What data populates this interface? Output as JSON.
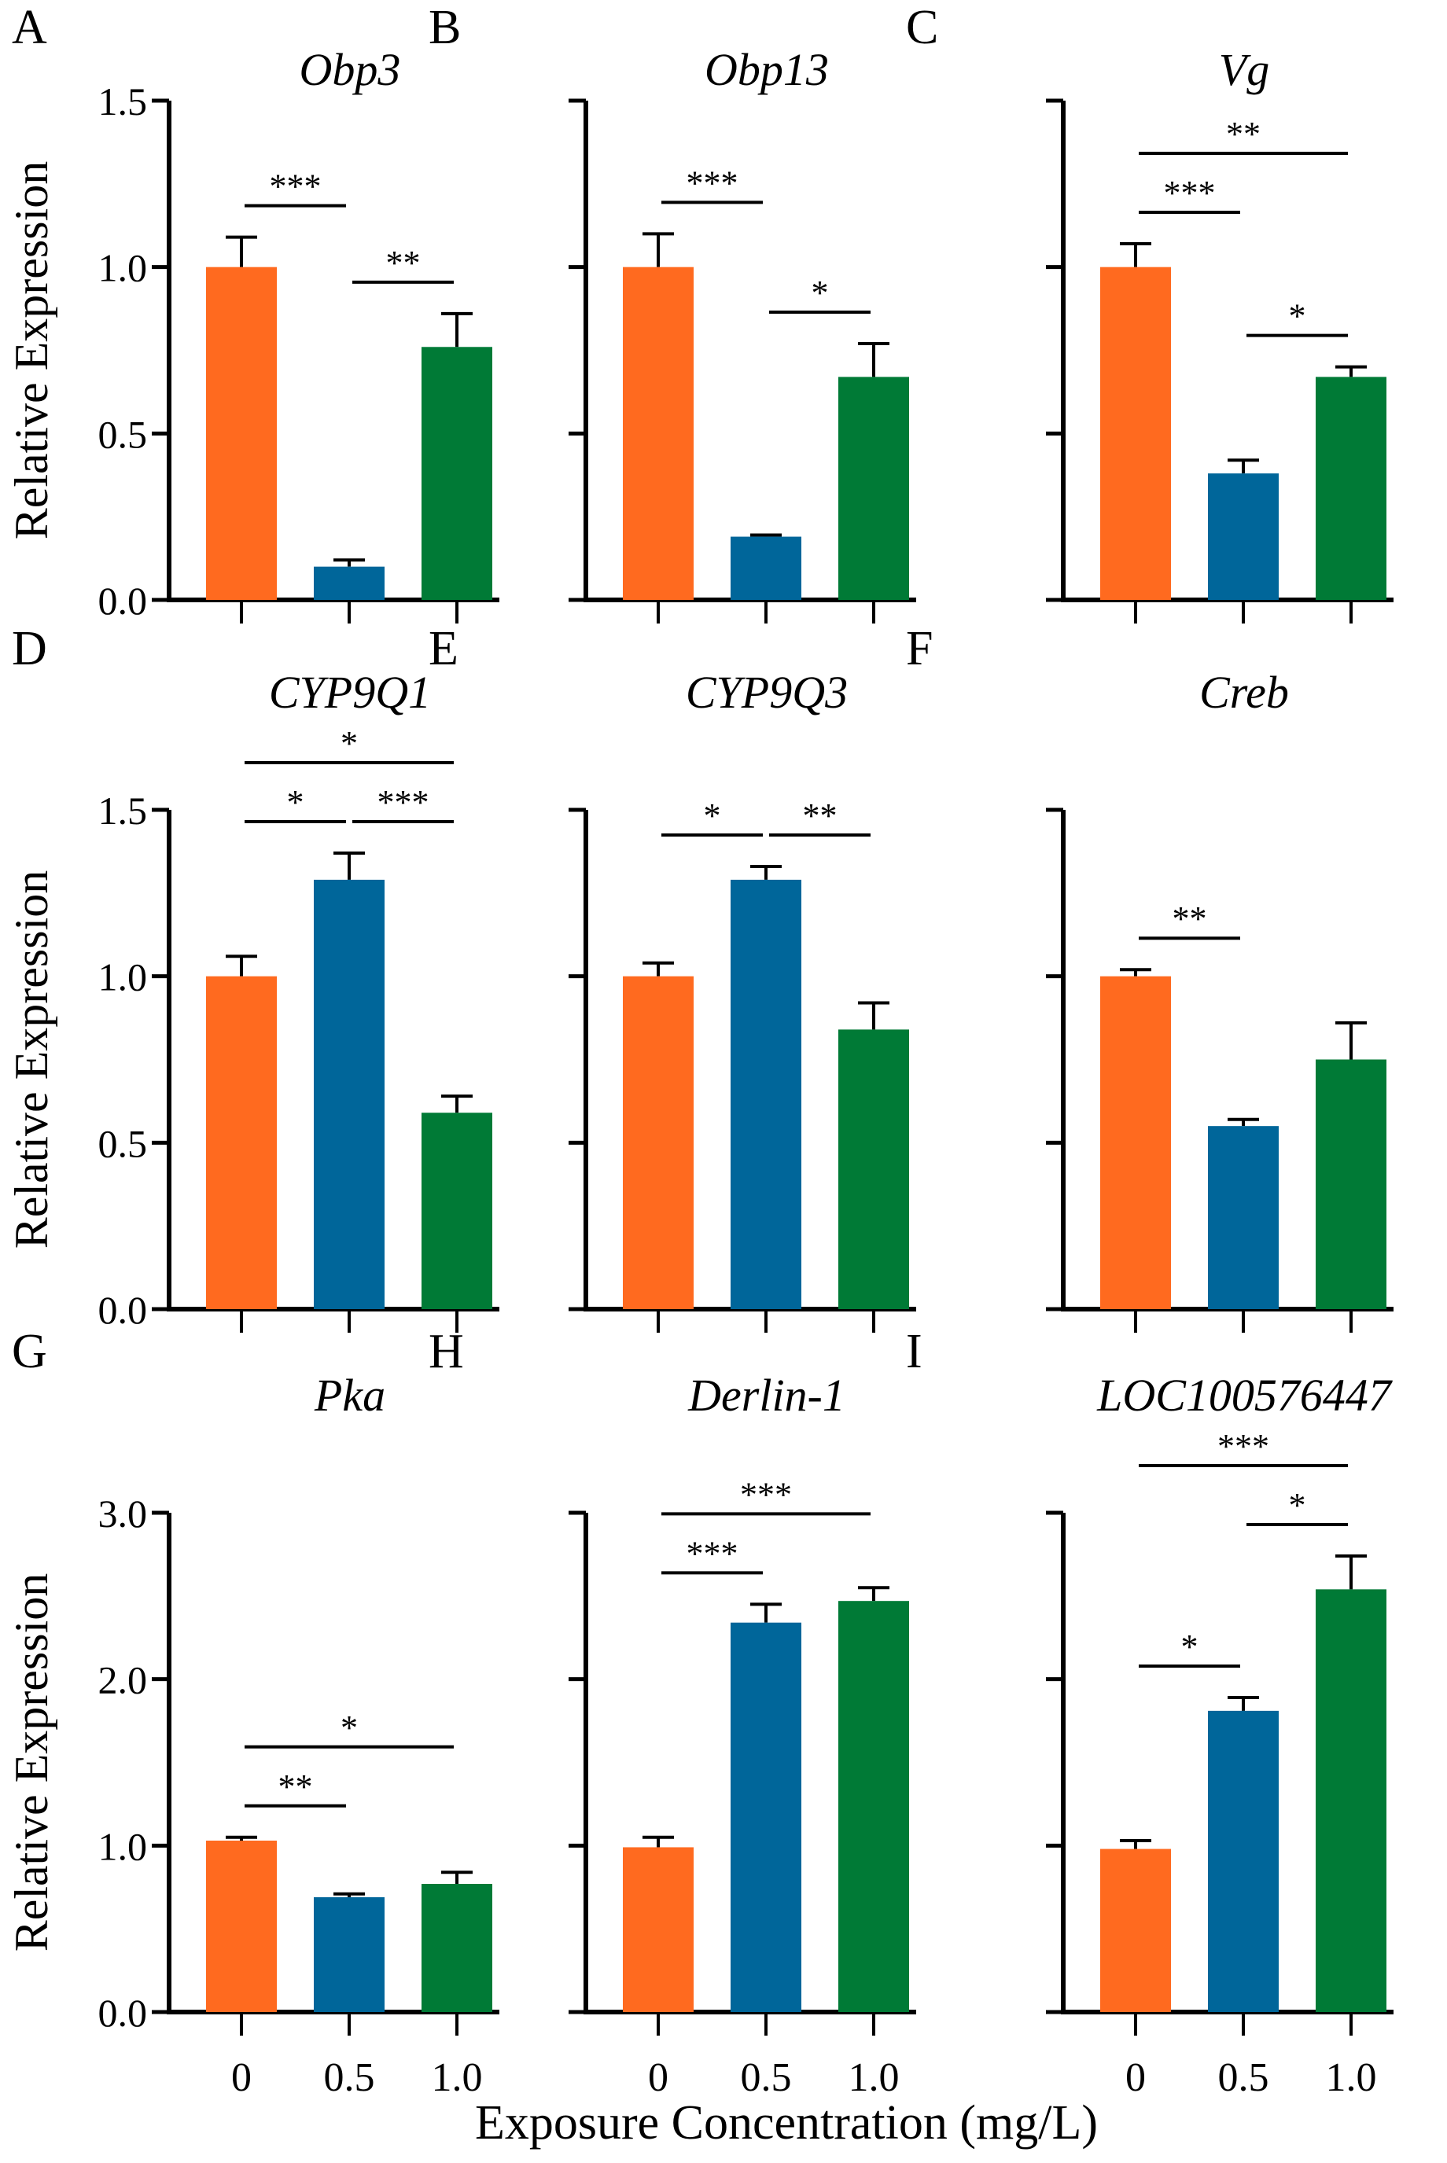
{
  "chart_data": {
    "type": "bar",
    "x_title": "Exposure Concentration (mg/L)",
    "ylabel": "Relative Expression",
    "categories": [
      "0",
      "0.5",
      "1.0"
    ],
    "colors": [
      "#FF6A1F",
      "#00669A",
      "#007A36"
    ],
    "panels": [
      {
        "letter": "A",
        "title": "Obp3",
        "ylim": [
          0,
          1.5
        ],
        "yticks": [
          "0.0",
          "0.5",
          "1.0",
          "1.5"
        ],
        "values": [
          1.0,
          0.1,
          0.76
        ],
        "errors": [
          0.09,
          0.02,
          0.1
        ],
        "sig": [
          {
            "from": 0,
            "to": 1,
            "label": "***"
          },
          {
            "from": 1,
            "to": 2,
            "label": "**"
          }
        ]
      },
      {
        "letter": "B",
        "title": "Obp13",
        "ylim": [
          0,
          1.5
        ],
        "yticks": [],
        "values": [
          1.0,
          0.19,
          0.67
        ],
        "errors": [
          0.1,
          0.005,
          0.1
        ],
        "sig": [
          {
            "from": 0,
            "to": 1,
            "label": "***"
          },
          {
            "from": 1,
            "to": 2,
            "label": "*"
          }
        ]
      },
      {
        "letter": "C",
        "title": "Vg",
        "ylim": [
          0,
          1.5
        ],
        "yticks": [],
        "values": [
          1.0,
          0.38,
          0.67
        ],
        "errors": [
          0.07,
          0.04,
          0.03
        ],
        "sig": [
          {
            "from": 0,
            "to": 1,
            "label": "***"
          },
          {
            "from": 1,
            "to": 2,
            "label": "*"
          },
          {
            "from": 0,
            "to": 2,
            "label": "**"
          }
        ]
      },
      {
        "letter": "D",
        "title": "CYP9Q1",
        "ylim": [
          0,
          1.5
        ],
        "yticks": [
          "0.0",
          "0.5",
          "1.0",
          "1.5"
        ],
        "values": [
          1.0,
          1.29,
          0.59
        ],
        "errors": [
          0.06,
          0.08,
          0.05
        ],
        "sig": [
          {
            "from": 0,
            "to": 1,
            "label": "*"
          },
          {
            "from": 1,
            "to": 2,
            "label": "***"
          },
          {
            "from": 0,
            "to": 2,
            "label": "*"
          }
        ]
      },
      {
        "letter": "E",
        "title": "CYP9Q3",
        "ylim": [
          0,
          1.5
        ],
        "yticks": [],
        "values": [
          1.0,
          1.29,
          0.84
        ],
        "errors": [
          0.04,
          0.04,
          0.08
        ],
        "sig": [
          {
            "from": 0,
            "to": 1,
            "label": "*"
          },
          {
            "from": 1,
            "to": 2,
            "label": "**"
          }
        ]
      },
      {
        "letter": "F",
        "title": "Creb",
        "ylim": [
          0,
          1.5
        ],
        "yticks": [],
        "values": [
          1.0,
          0.55,
          0.75
        ],
        "errors": [
          0.02,
          0.02,
          0.11
        ],
        "sig": [
          {
            "from": 0,
            "to": 1,
            "label": "**"
          }
        ]
      },
      {
        "letter": "G",
        "title": "Pka",
        "ylim": [
          0,
          3.0
        ],
        "yticks": [
          "0.0",
          "1.0",
          "2.0",
          "3.0"
        ],
        "values": [
          1.03,
          0.69,
          0.77
        ],
        "errors": [
          0.02,
          0.02,
          0.07
        ],
        "sig": [
          {
            "from": 0,
            "to": 1,
            "label": "**"
          },
          {
            "from": 0,
            "to": 2,
            "label": "*"
          }
        ]
      },
      {
        "letter": "H",
        "title": "Derlin-1",
        "ylim": [
          0,
          3.0
        ],
        "yticks": [],
        "values": [
          0.99,
          2.34,
          2.47
        ],
        "errors": [
          0.06,
          0.11,
          0.08
        ],
        "sig": [
          {
            "from": 0,
            "to": 1,
            "label": "***"
          },
          {
            "from": 0,
            "to": 2,
            "label": "***"
          }
        ]
      },
      {
        "letter": "I",
        "title": "LOC100576447",
        "ylim": [
          0,
          3.0
        ],
        "yticks": [],
        "values": [
          0.98,
          1.81,
          2.54
        ],
        "errors": [
          0.05,
          0.08,
          0.2
        ],
        "sig": [
          {
            "from": 0,
            "to": 1,
            "label": "*"
          },
          {
            "from": 1,
            "to": 2,
            "label": "*"
          },
          {
            "from": 0,
            "to": 2,
            "label": "***"
          }
        ]
      }
    ]
  }
}
